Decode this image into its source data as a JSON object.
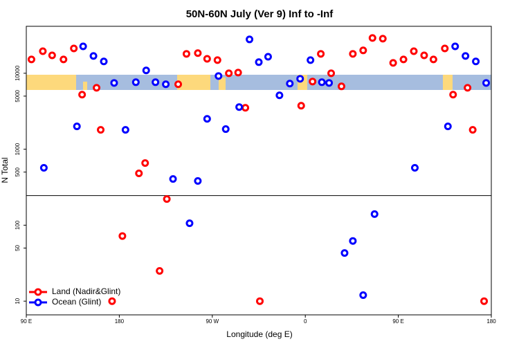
{
  "chart_data": {
    "type": "scatter",
    "title": "50N-60N July (Ver 9)   Inf to -Inf",
    "x_label": "Longitude (deg E)",
    "y_label": "N Total",
    "log_y": true,
    "xlim": [
      90,
      540
    ],
    "xticks": [
      {
        "value": 90,
        "label": "90 E"
      },
      {
        "value": 180,
        "label": "180"
      },
      {
        "value": 270,
        "label": "90 W"
      },
      {
        "value": 360,
        "label": "0"
      },
      {
        "value": 450,
        "label": "90 E"
      },
      {
        "value": 540,
        "label": "180"
      }
    ],
    "ylim": [
      6.6,
      41500
    ],
    "yticks": [
      10,
      50,
      100,
      500,
      1000,
      5000,
      10000
    ],
    "hline": 245,
    "legend": "bottom-left",
    "series": [
      {
        "name": "Land (Nadir&Glint)",
        "color": "#ff0000",
        "x": [
          95,
          106,
          115,
          126,
          136,
          144,
          158,
          162,
          173,
          183,
          199,
          205,
          219,
          226,
          237,
          245,
          256,
          265,
          275,
          286,
          295,
          302,
          316,
          356,
          367,
          375,
          385,
          395,
          406,
          416,
          425,
          435,
          445,
          455,
          465,
          475,
          484,
          495,
          503,
          517,
          522,
          533
        ],
        "values": [
          15200,
          19500,
          17200,
          15200,
          21200,
          5230,
          6440,
          1800,
          10,
          72,
          481,
          658,
          25,
          221,
          7160,
          18000,
          18400,
          15500,
          14900,
          10000,
          10200,
          3510,
          10,
          3740,
          7780,
          18000,
          10000,
          6720,
          18000,
          20000,
          29100,
          28500,
          13700,
          15200,
          19500,
          17200,
          15200,
          21200,
          5230,
          6440,
          1800,
          10
        ]
      },
      {
        "name": "Ocean (Glint)",
        "color": "#0000ff",
        "x": [
          107,
          139,
          145,
          155,
          165,
          175,
          186,
          196,
          206,
          215,
          225,
          232,
          248,
          256,
          265,
          276,
          283,
          296,
          306,
          315,
          324,
          335,
          345,
          355,
          365,
          376,
          383,
          398,
          406,
          416,
          427,
          466,
          498,
          505,
          515,
          525,
          535
        ],
        "values": [
          569,
          2000,
          22600,
          16900,
          14300,
          7460,
          1800,
          7620,
          10900,
          7620,
          7160,
          406,
          106,
          382,
          2510,
          9200,
          1840,
          3590,
          27900,
          14000,
          16500,
          5120,
          7310,
          8460,
          14900,
          7620,
          7460,
          43,
          62,
          12,
          140,
          569,
          2000,
          22600,
          16900,
          14300,
          7460
        ]
      }
    ]
  }
}
